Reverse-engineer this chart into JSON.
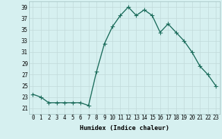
{
  "xlabel": "Humidex (Indice chaleur)",
  "ylabel": "",
  "x": [
    0,
    1,
    2,
    3,
    4,
    5,
    6,
    7,
    8,
    9,
    10,
    11,
    12,
    13,
    14,
    15,
    16,
    17,
    18,
    19,
    20,
    21,
    22,
    23
  ],
  "y": [
    23.5,
    23.0,
    22.0,
    22.0,
    22.0,
    22.0,
    22.0,
    21.5,
    27.5,
    32.5,
    35.5,
    37.5,
    39.0,
    37.5,
    38.5,
    37.5,
    34.5,
    36.0,
    34.5,
    33.0,
    31.0,
    28.5,
    27.0,
    25.0
  ],
  "line_color": "#1a6b5a",
  "marker": "+",
  "markersize": 4,
  "bg_color": "#d6f0f0",
  "grid_color": "#c0d8d8",
  "ylim": [
    20,
    40
  ],
  "yticks": [
    21,
    23,
    25,
    27,
    29,
    31,
    33,
    35,
    37,
    39
  ],
  "xticks": [
    0,
    1,
    2,
    3,
    4,
    5,
    6,
    7,
    8,
    9,
    10,
    11,
    12,
    13,
    14,
    15,
    16,
    17,
    18,
    19,
    20,
    21,
    22,
    23
  ],
  "tick_label_fontsize": 5.5,
  "xlabel_fontsize": 6.5,
  "linewidth": 1.0,
  "markeredgewidth": 0.8
}
